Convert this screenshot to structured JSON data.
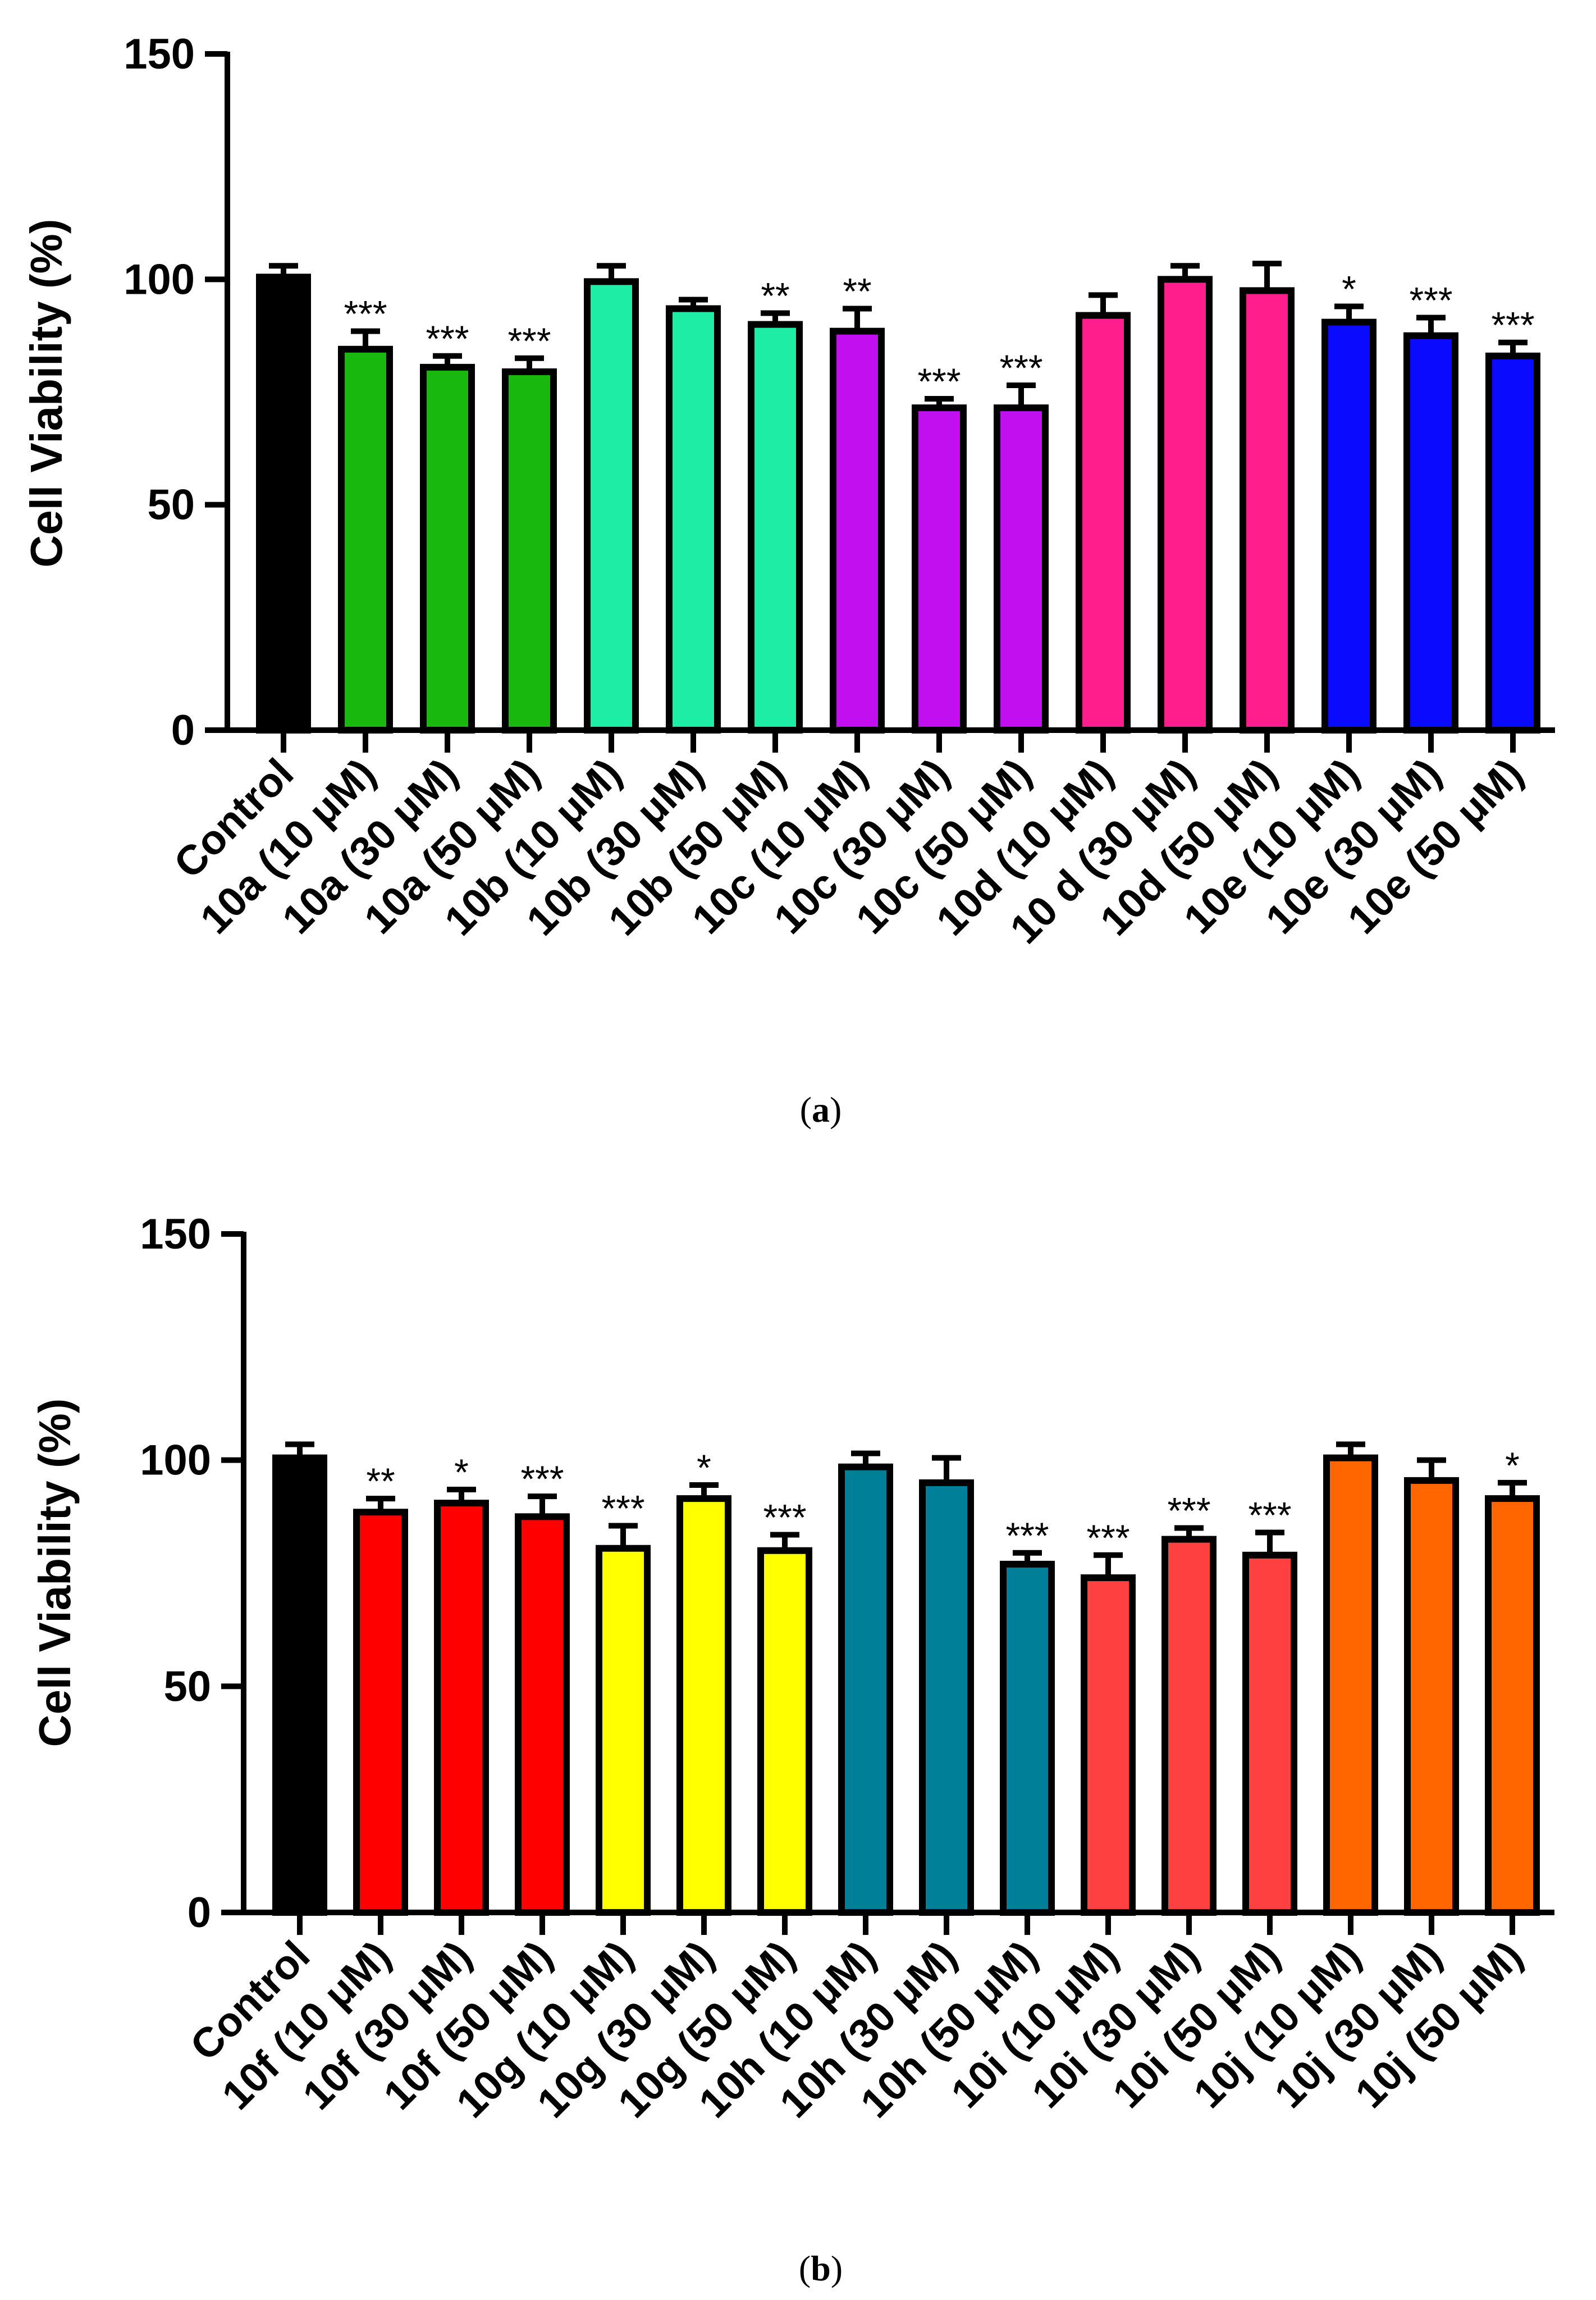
{
  "figure": {
    "panels": [
      {
        "label_open": "(",
        "label_letter": "a",
        "label_close": ")"
      },
      {
        "label_open": "(",
        "label_letter": "b",
        "label_close": ")"
      }
    ]
  },
  "chart_data": [
    {
      "type": "bar",
      "ylabel": "Cell Viability (%)",
      "ylim": [
        0,
        150
      ],
      "yticks": [
        "0",
        "50",
        "100",
        "150"
      ],
      "grid": false,
      "categories": [
        "Control",
        "10a (10 μM)",
        "10a (30 μM)",
        "10a (50 μM)",
        "10b (10 μM)",
        "10b (30 μM)",
        "10b (50 μM)",
        "10c (10 μM)",
        "10c (30 μM)",
        "10c (50 μM)",
        "10d (10 μM)",
        "10 d (30 μM)",
        "10d (50 μM)",
        "10e (10 μM)",
        "10e (30 μM)",
        "10e (50 μM)"
      ],
      "values": [
        100.5,
        84.5,
        80.5,
        79.5,
        99.5,
        93.5,
        90,
        88.5,
        71.5,
        71.5,
        92,
        100,
        97.5,
        90.5,
        87.5,
        83
      ],
      "errors": [
        2.5,
        4.0,
        2.5,
        3.0,
        3.5,
        2.0,
        2.5,
        5.0,
        2.0,
        5.0,
        4.5,
        3.0,
        6.0,
        3.5,
        4.0,
        3.0
      ],
      "significance": [
        "",
        "***",
        "***",
        "***",
        "",
        "",
        "**",
        "**",
        "***",
        "***",
        "",
        "",
        "",
        "*",
        "***",
        "***"
      ],
      "colors": [
        "#000000",
        "#19b80f",
        "#19b80f",
        "#19b80f",
        "#1eeda5",
        "#1eeda5",
        "#1eeda5",
        "#c10ff0",
        "#c10ff0",
        "#c10ff0",
        "#ff1e8c",
        "#ff1e8c",
        "#ff1e8c",
        "#0a0aff",
        "#0a0aff",
        "#0a0aff"
      ]
    },
    {
      "type": "bar",
      "ylabel": "Cell Viability (%)",
      "ylim": [
        0,
        150
      ],
      "yticks": [
        "0",
        "50",
        "100",
        "150"
      ],
      "grid": false,
      "categories": [
        "Control",
        "10f (10 μM)",
        "10f (30 μM)",
        "10f (50 μM)",
        "10g (10 μM)",
        "10g (30 μM)",
        "10g (50 μM)",
        "10h (10 μM)",
        "10h (30 μM)",
        "10h (50 μM)",
        "10i (10 μM)",
        "10i (30 μM)",
        "10i (50 μM)",
        "10j (10 μM)",
        "10j (30 μM)",
        "10j (50 μM)"
      ],
      "values": [
        100.5,
        88.5,
        90.5,
        87.5,
        80.5,
        91.5,
        80,
        98.5,
        95,
        77,
        74,
        82.5,
        79,
        100.5,
        95.5,
        91.5
      ],
      "errors": [
        3.0,
        3.0,
        3.0,
        4.5,
        5.0,
        3.0,
        3.5,
        3.0,
        5.5,
        2.5,
        5.0,
        2.5,
        5.0,
        3.0,
        4.5,
        3.5
      ],
      "significance": [
        "",
        "**",
        "*",
        "***",
        "***",
        "*",
        "***",
        "",
        "",
        "***",
        "***",
        "***",
        "***",
        "",
        "",
        "*"
      ],
      "colors": [
        "#000000",
        "#ff0000",
        "#ff0000",
        "#ff0000",
        "#ffff00",
        "#ffff00",
        "#ffff00",
        "#007f99",
        "#007f99",
        "#007f99",
        "#ff4040",
        "#ff4040",
        "#ff4040",
        "#ff6600",
        "#ff6600",
        "#ff6600"
      ]
    }
  ]
}
